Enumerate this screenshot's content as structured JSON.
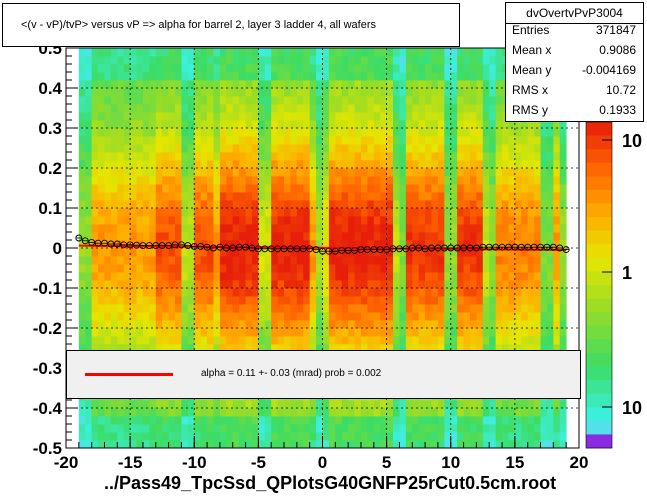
{
  "chart_data": {
    "type": "heatmap",
    "title": "<(v - vP)/tvP> versus   vP => alpha for barrel 2, layer 3 ladder 4, all wafers",
    "xlim": [
      -20,
      20
    ],
    "ylim": [
      -0.5,
      0.5
    ],
    "x_ticks": [
      "-20",
      "-15",
      "-10",
      "-5",
      "0",
      "5",
      "10",
      "15",
      "20"
    ],
    "y_ticks": [
      "-0.5",
      "-0.4",
      "-0.3",
      "-0.2",
      "-0.1",
      "0",
      "0.1",
      "0.2",
      "0.3",
      "0.4",
      "0.5"
    ],
    "z_ticks": [
      "10",
      "1",
      "10"
    ],
    "grid": true,
    "data_x_range": [
      -19,
      19
    ],
    "profile": {
      "x": [
        -19.0,
        -18.5,
        -18.0,
        -17.5,
        -17.0,
        -16.5,
        -16.0,
        -15.5,
        -15.0,
        -14.5,
        -14.0,
        -13.5,
        -13.0,
        -12.5,
        -12.0,
        -11.5,
        -11.0,
        -10.5,
        -10.0,
        -9.5,
        -9.0,
        -8.5,
        -8.0,
        -7.5,
        -7.0,
        -6.5,
        -6.0,
        -5.5,
        -5.0,
        -4.5,
        -4.0,
        -3.5,
        -3.0,
        -2.5,
        -2.0,
        -1.5,
        -1.0,
        -0.5,
        0.0,
        0.5,
        1.0,
        1.5,
        2.0,
        2.5,
        3.0,
        3.5,
        4.0,
        4.5,
        5.0,
        5.5,
        6.0,
        6.5,
        7.0,
        7.5,
        8.0,
        8.5,
        9.0,
        9.5,
        10.0,
        10.5,
        11.0,
        11.5,
        12.0,
        12.5,
        13.0,
        13.5,
        14.0,
        14.5,
        15.0,
        15.5,
        16.0,
        16.5,
        17.0,
        17.5,
        18.0,
        18.5,
        19.0
      ],
      "y": [
        0.025,
        0.018,
        0.014,
        0.012,
        0.012,
        0.01,
        0.01,
        0.008,
        0.008,
        0.007,
        0.006,
        0.006,
        0.006,
        0.006,
        0.006,
        0.008,
        0.008,
        0.006,
        0.004,
        0.004,
        0.002,
        0.0,
        0.002,
        0.0,
        0.0,
        0.002,
        0.002,
        0.0,
        -0.002,
        -0.002,
        -0.002,
        -0.002,
        -0.002,
        -0.002,
        -0.002,
        -0.002,
        -0.002,
        -0.004,
        -0.008,
        -0.008,
        -0.008,
        -0.006,
        -0.006,
        -0.006,
        -0.004,
        -0.004,
        -0.004,
        -0.004,
        -0.004,
        -0.002,
        -0.002,
        -0.002,
        0.0,
        0.0,
        -0.002,
        0.0,
        0.0,
        0.0,
        0.0,
        0.0,
        0.0,
        0.0,
        0.0,
        0.002,
        0.002,
        0.002,
        0.002,
        0.002,
        0.002,
        0.002,
        0.002,
        0.002,
        0.002,
        0.002,
        0.002,
        0.0,
        -0.004
      ]
    },
    "fit": {
      "x": [
        -19,
        19
      ],
      "y": [
        0.006,
        -0.005
      ]
    }
  },
  "stats": {
    "name": "dvOvertvPvP3004",
    "rows": [
      {
        "label": "Entries",
        "value": "371847"
      },
      {
        "label": "Mean x",
        "value": "0.9086"
      },
      {
        "label": "Mean y",
        "value": "-0.004169"
      },
      {
        "label": "RMS x",
        "value": "10.72"
      },
      {
        "label": "RMS y",
        "value": "0.1933"
      }
    ]
  },
  "legend": {
    "text": "alpha =    0.11 +-  0.03 (mrad) prob = 0.002"
  },
  "footer": "../Pass49_TpcSsd_QPlotsG40GNFP25rCut0.5cm.root",
  "colors": {
    "fit": "#ff0000",
    "marker": "#000000"
  }
}
